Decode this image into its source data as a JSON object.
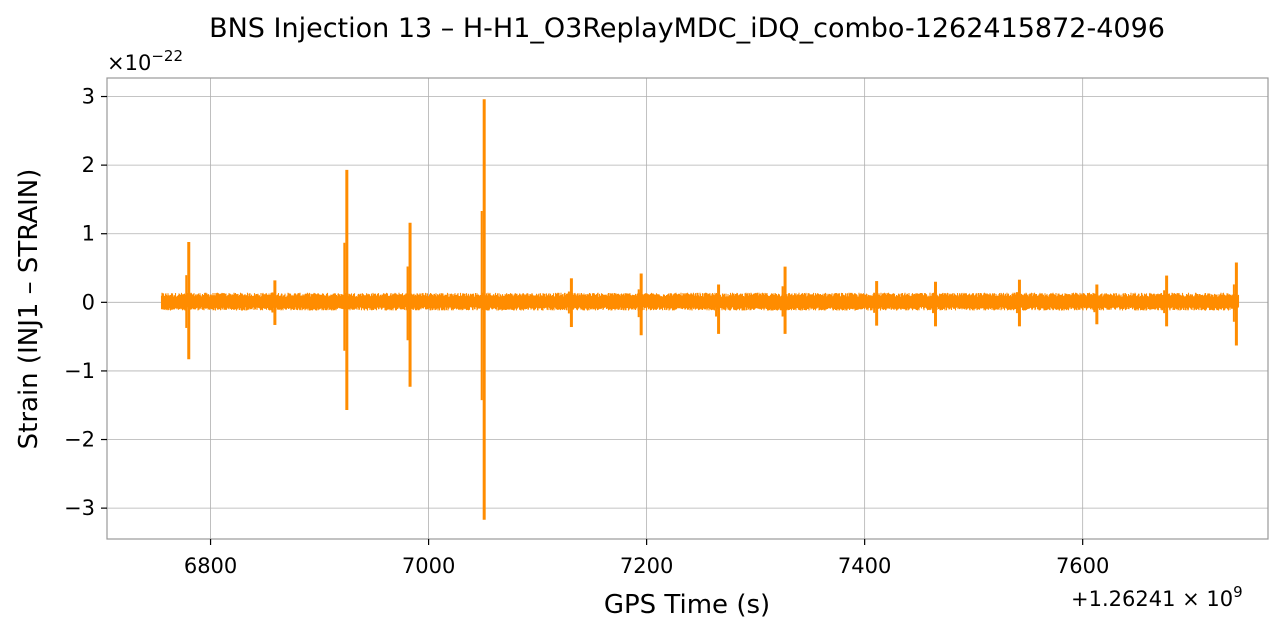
{
  "chart_data": {
    "type": "line",
    "title": "BNS Injection 13 – H-H1_O3ReplayMDC_iDQ_combo-1262415872-4096",
    "xlabel": "GPS Time (s)",
    "ylabel": "Strain (INJ1 – STRAIN)",
    "x_offset_label": "+1.26241 × 10",
    "x_offset_exponent": "9",
    "y_multiplier_label": "×10",
    "y_multiplier_exponent": "−22",
    "xlim": [
      6705,
      7770
    ],
    "ylim": [
      -3.45,
      3.27
    ],
    "x_ticks": [
      6800,
      7000,
      7200,
      7400,
      7600
    ],
    "x_tick_labels": [
      "6800",
      "7000",
      "7200",
      "7400",
      "7600"
    ],
    "y_ticks": [
      -3,
      -2,
      -1,
      0,
      1,
      2,
      3
    ],
    "y_tick_labels": [
      "−3",
      "−2",
      "−1",
      "0",
      "1",
      "2",
      "3"
    ],
    "grid": true,
    "series": [
      {
        "color": "#ff8c00",
        "x_range": [
          6755,
          7743
        ],
        "baseline": 0.0,
        "noise_amplitude": [
          -0.12,
          0.14
        ],
        "spikes": [
          {
            "x": 6780,
            "max": 0.88,
            "min": -0.83
          },
          {
            "x": 6859,
            "max": 0.32,
            "min": -0.33
          },
          {
            "x": 6925,
            "max": 1.93,
            "min": -1.57
          },
          {
            "x": 6983,
            "max": 1.16,
            "min": -1.23
          },
          {
            "x": 7051,
            "max": 2.96,
            "min": -3.17
          },
          {
            "x": 7131,
            "max": 0.35,
            "min": -0.36
          },
          {
            "x": 7195,
            "max": 0.42,
            "min": -0.48
          },
          {
            "x": 7266,
            "max": 0.26,
            "min": -0.46
          },
          {
            "x": 7327,
            "max": 0.52,
            "min": -0.46
          },
          {
            "x": 7411,
            "max": 0.31,
            "min": -0.34
          },
          {
            "x": 7465,
            "max": 0.3,
            "min": -0.35
          },
          {
            "x": 7542,
            "max": 0.33,
            "min": -0.35
          },
          {
            "x": 7613,
            "max": 0.26,
            "min": -0.32
          },
          {
            "x": 7677,
            "max": 0.39,
            "min": -0.35
          },
          {
            "x": 7741,
            "max": 0.58,
            "min": -0.63
          }
        ]
      }
    ]
  }
}
